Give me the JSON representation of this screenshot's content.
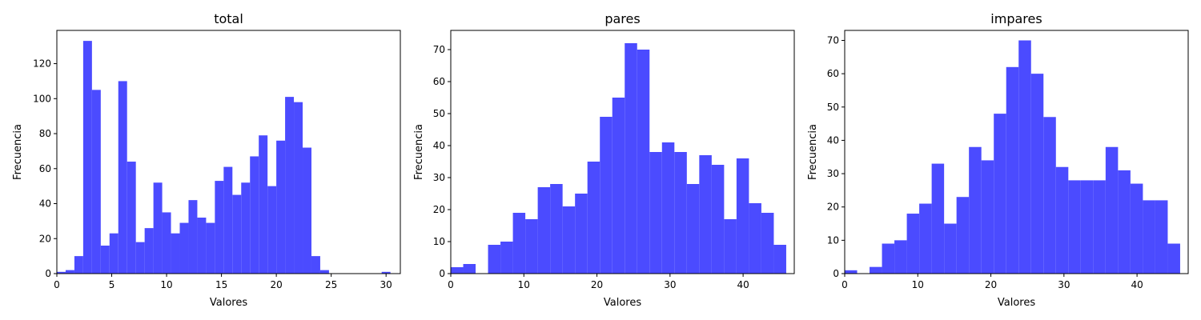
{
  "chart_data": [
    {
      "type": "bar",
      "title": "total",
      "xlabel": "Valores",
      "ylabel": "Frecuencia",
      "xlim": [
        0,
        31.3
      ],
      "ylim": [
        0,
        139
      ],
      "xticks": [
        0,
        5,
        10,
        15,
        20,
        25,
        30
      ],
      "yticks": [
        0,
        20,
        40,
        60,
        80,
        100,
        120
      ],
      "bin_start": 0,
      "bin_width": 0.8,
      "values": [
        1,
        2,
        10,
        133,
        105,
        16,
        23,
        110,
        64,
        18,
        26,
        52,
        35,
        23,
        29,
        42,
        32,
        29,
        53,
        61,
        45,
        52,
        67,
        79,
        50,
        76,
        101,
        98,
        72,
        10,
        2,
        0,
        0,
        0,
        0,
        0,
        0,
        1
      ],
      "color": "#4b4bff"
    },
    {
      "type": "bar",
      "title": "pares",
      "xlabel": "Valores",
      "ylabel": "Frecuencia",
      "xlim": [
        0,
        47
      ],
      "ylim": [
        0,
        76
      ],
      "xticks": [
        0,
        10,
        20,
        30,
        40
      ],
      "yticks": [
        0,
        10,
        20,
        30,
        40,
        50,
        60,
        70
      ],
      "bin_start": 0,
      "bin_width": 1.7,
      "values": [
        2,
        3,
        0,
        9,
        10,
        19,
        17,
        27,
        28,
        21,
        25,
        35,
        49,
        55,
        72,
        70,
        38,
        41,
        38,
        28,
        37,
        34,
        17,
        36,
        22,
        19,
        9
      ],
      "color": "#4b4bff"
    },
    {
      "type": "bar",
      "title": "impares",
      "xlabel": "Valores",
      "ylabel": "Frecuencia",
      "xlim": [
        0,
        47
      ],
      "ylim": [
        0,
        73
      ],
      "xticks": [
        0,
        10,
        20,
        30,
        40
      ],
      "yticks": [
        0,
        10,
        20,
        30,
        40,
        50,
        60,
        70
      ],
      "bin_start": 0,
      "bin_width": 1.7,
      "values": [
        1,
        0,
        2,
        9,
        10,
        18,
        21,
        33,
        15,
        23,
        38,
        34,
        48,
        62,
        70,
        60,
        47,
        32,
        28,
        28,
        28,
        38,
        31,
        27,
        22,
        22,
        9
      ],
      "color": "#4b4bff"
    }
  ]
}
